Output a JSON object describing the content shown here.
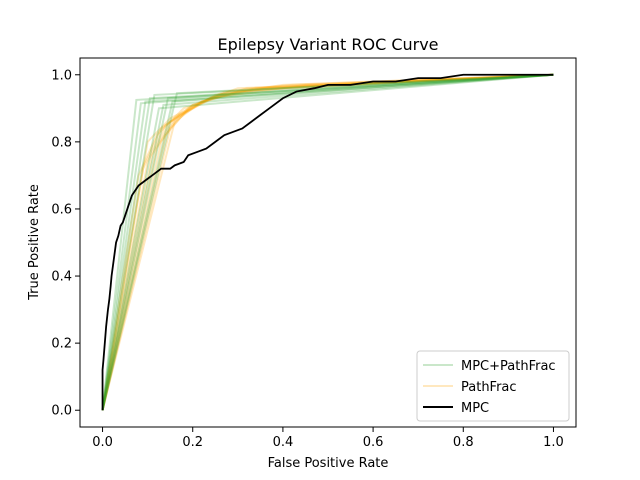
{
  "chart_data": {
    "type": "line",
    "title": "Epilepsy Variant ROC Curve",
    "xlabel": "False Positive Rate",
    "ylabel": "True Positive Rate",
    "xlim": [
      -0.05,
      1.05
    ],
    "ylim": [
      -0.05,
      1.05
    ],
    "xticks": [
      0.0,
      0.2,
      0.4,
      0.6,
      0.8,
      1.0
    ],
    "yticks": [
      0.0,
      0.2,
      0.4,
      0.6,
      0.8,
      1.0
    ],
    "tick_labels_x": [
      "0.0",
      "0.2",
      "0.4",
      "0.6",
      "0.8",
      "1.0"
    ],
    "tick_labels_y": [
      "0.0",
      "0.2",
      "0.4",
      "0.6",
      "0.8",
      "1.0"
    ],
    "grid": false,
    "legend_position": "lower-right",
    "series": [
      {
        "name": "PathFrac",
        "color": "#ffa500",
        "opacity": 0.25,
        "curves": [
          [
            [
              0,
              0
            ],
            [
              0.08,
              0.7
            ],
            [
              0.12,
              0.82
            ],
            [
              0.18,
              0.9
            ],
            [
              0.3,
              0.95
            ],
            [
              0.5,
              0.97
            ],
            [
              1,
              1
            ]
          ],
          [
            [
              0,
              0
            ],
            [
              0.09,
              0.72
            ],
            [
              0.13,
              0.84
            ],
            [
              0.2,
              0.91
            ],
            [
              0.32,
              0.96
            ],
            [
              0.52,
              0.97
            ],
            [
              1,
              1
            ]
          ],
          [
            [
              0,
              0
            ],
            [
              0.1,
              0.74
            ],
            [
              0.14,
              0.85
            ],
            [
              0.22,
              0.92
            ],
            [
              0.34,
              0.96
            ],
            [
              1,
              1
            ]
          ],
          [
            [
              0,
              0
            ],
            [
              0.11,
              0.76
            ],
            [
              0.15,
              0.86
            ],
            [
              0.24,
              0.93
            ],
            [
              0.36,
              0.96
            ],
            [
              1,
              1
            ]
          ],
          [
            [
              0,
              0
            ],
            [
              0.12,
              0.78
            ],
            [
              0.16,
              0.87
            ],
            [
              0.25,
              0.94
            ],
            [
              0.38,
              0.96
            ],
            [
              1,
              1
            ]
          ],
          [
            [
              0,
              0
            ],
            [
              0.13,
              0.8
            ],
            [
              0.17,
              0.88
            ],
            [
              0.26,
              0.94
            ],
            [
              0.4,
              0.97
            ],
            [
              1,
              1
            ]
          ],
          [
            [
              0,
              0
            ],
            [
              0.14,
              0.82
            ],
            [
              0.19,
              0.9
            ],
            [
              0.27,
              0.95
            ],
            [
              0.42,
              0.97
            ],
            [
              1,
              1
            ]
          ],
          [
            [
              0,
              0
            ],
            [
              0.15,
              0.84
            ],
            [
              0.2,
              0.91
            ],
            [
              0.28,
              0.95
            ],
            [
              1,
              1
            ]
          ],
          [
            [
              0,
              0
            ],
            [
              0.16,
              0.86
            ],
            [
              0.22,
              0.92
            ],
            [
              0.3,
              0.96
            ],
            [
              1,
              1
            ]
          ],
          [
            [
              0,
              0
            ],
            [
              0.1,
              0.8
            ],
            [
              0.15,
              0.87
            ],
            [
              0.24,
              0.93
            ],
            [
              0.45,
              0.97
            ],
            [
              1,
              1
            ]
          ]
        ]
      },
      {
        "name": "MPC+PathFrac",
        "color": "#2ca02c",
        "opacity": 0.25,
        "curves": [
          [
            [
              0,
              0
            ],
            [
              0.075,
              0.925
            ],
            [
              1,
              1
            ]
          ],
          [
            [
              0,
              0
            ],
            [
              0.085,
              0.915
            ],
            [
              1,
              1
            ]
          ],
          [
            [
              0,
              0
            ],
            [
              0.095,
              0.92
            ],
            [
              1,
              1
            ]
          ],
          [
            [
              0,
              0
            ],
            [
              0.105,
              0.93
            ],
            [
              1,
              1
            ]
          ],
          [
            [
              0,
              0
            ],
            [
              0.115,
              0.94
            ],
            [
              1,
              1
            ]
          ],
          [
            [
              0,
              0
            ],
            [
              0.125,
              0.9
            ],
            [
              1,
              1
            ]
          ],
          [
            [
              0,
              0
            ],
            [
              0.135,
              0.91
            ],
            [
              1,
              1
            ]
          ],
          [
            [
              0,
              0
            ],
            [
              0.145,
              0.93
            ],
            [
              1,
              1
            ]
          ],
          [
            [
              0,
              0
            ],
            [
              0.155,
              0.92
            ],
            [
              1,
              1
            ]
          ],
          [
            [
              0,
              0
            ],
            [
              0.165,
              0.945
            ],
            [
              1,
              1
            ]
          ]
        ]
      },
      {
        "name": "MPC",
        "color": "#000000",
        "opacity": 1,
        "curves": [
          [
            [
              0,
              0
            ],
            [
              0,
              0.12
            ],
            [
              0.002,
              0.15
            ],
            [
              0.005,
              0.2
            ],
            [
              0.008,
              0.25
            ],
            [
              0.012,
              0.3
            ],
            [
              0.015,
              0.33
            ],
            [
              0.018,
              0.37
            ],
            [
              0.02,
              0.4
            ],
            [
              0.025,
              0.45
            ],
            [
              0.03,
              0.5
            ],
            [
              0.035,
              0.52
            ],
            [
              0.04,
              0.55
            ],
            [
              0.045,
              0.56
            ],
            [
              0.05,
              0.58
            ],
            [
              0.055,
              0.6
            ],
            [
              0.06,
              0.62
            ],
            [
              0.065,
              0.64
            ],
            [
              0.07,
              0.65
            ],
            [
              0.08,
              0.67
            ],
            [
              0.09,
              0.68
            ],
            [
              0.1,
              0.69
            ],
            [
              0.11,
              0.7
            ],
            [
              0.12,
              0.71
            ],
            [
              0.13,
              0.72
            ],
            [
              0.15,
              0.72
            ],
            [
              0.16,
              0.73
            ],
            [
              0.18,
              0.74
            ],
            [
              0.19,
              0.76
            ],
            [
              0.21,
              0.77
            ],
            [
              0.23,
              0.78
            ],
            [
              0.25,
              0.8
            ],
            [
              0.27,
              0.82
            ],
            [
              0.29,
              0.83
            ],
            [
              0.31,
              0.84
            ],
            [
              0.33,
              0.86
            ],
            [
              0.35,
              0.88
            ],
            [
              0.37,
              0.9
            ],
            [
              0.4,
              0.93
            ],
            [
              0.43,
              0.95
            ],
            [
              0.47,
              0.96
            ],
            [
              0.5,
              0.97
            ],
            [
              0.55,
              0.97
            ],
            [
              0.6,
              0.98
            ],
            [
              0.65,
              0.98
            ],
            [
              0.7,
              0.99
            ],
            [
              0.75,
              0.99
            ],
            [
              0.8,
              1.0
            ],
            [
              0.9,
              1.0
            ],
            [
              1,
              1
            ]
          ]
        ]
      }
    ],
    "legend": [
      {
        "label": "MPC+PathFrac",
        "color": "#2ca02c",
        "opacity": 0.25
      },
      {
        "label": "PathFrac",
        "color": "#ffa500",
        "opacity": 0.25
      },
      {
        "label": "MPC",
        "color": "#000000",
        "opacity": 1
      }
    ]
  }
}
